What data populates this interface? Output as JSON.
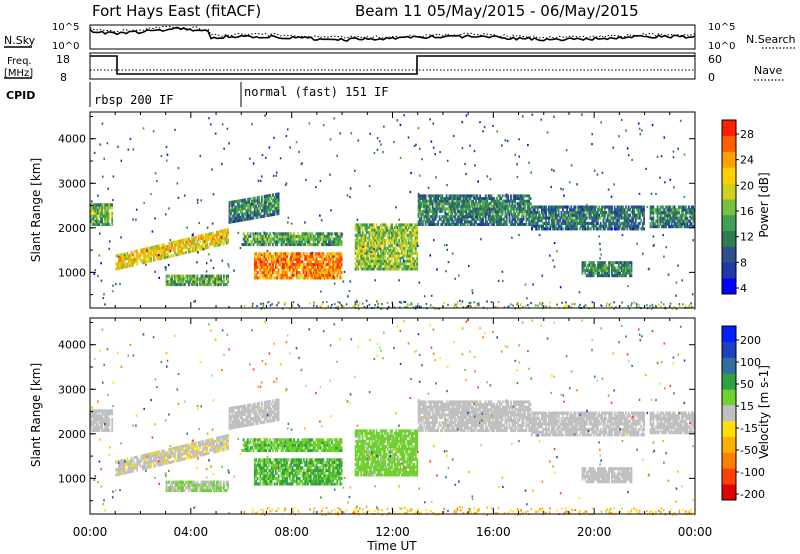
{
  "header": {
    "station": "Fort Hays East (fitACF)",
    "beam_range": "Beam 11 05/May/2015 - 06/May/2015"
  },
  "strips": {
    "nsky": {
      "label": "N.Sky",
      "ticks": [
        "10^5",
        "10^0"
      ],
      "right_label": "N.Search",
      "right_ticks": [
        "10^5",
        "10^0"
      ]
    },
    "freq": {
      "label_line1": "Freq.",
      "label_line2": "[MHz]",
      "ticks": [
        "18",
        "8"
      ],
      "right_label": "Nave",
      "right_ticks": [
        "60",
        "0"
      ]
    },
    "cpid": {
      "label": "CPID",
      "modes": [
        "rbsp 200 IF",
        "normal (fast) 151 IF"
      ]
    }
  },
  "chart_data": [
    {
      "type": "heatmap",
      "panel": "power",
      "xlabel": "Time UT",
      "x_ticks": [
        "00:00",
        "04:00",
        "08:00",
        "12:00",
        "16:00",
        "20:00",
        "00:00"
      ],
      "xlim": [
        0,
        24
      ],
      "ylabel": "Slant Range [km]",
      "ylim": [
        200,
        4600
      ],
      "y_ticks": [
        1000,
        2000,
        3000,
        4000
      ],
      "colorbar": {
        "label": "Power [dB]",
        "ticks": [
          "28",
          "24",
          "20",
          "16",
          "12",
          "8",
          "4"
        ],
        "range": [
          0,
          30
        ],
        "colors": [
          "#0000ff",
          "#1e3aa8",
          "#2f4f8f",
          "#2e7d4f",
          "#3ea050",
          "#7ac040",
          "#cfd020",
          "#ffd000",
          "#ffa000",
          "#ff6000",
          "#ff2000"
        ]
      }
    },
    {
      "type": "heatmap",
      "panel": "velocity",
      "xlabel": "Time UT",
      "x_ticks": [
        "00:00",
        "04:00",
        "08:00",
        "12:00",
        "16:00",
        "20:00",
        "00:00"
      ],
      "xlim": [
        0,
        24
      ],
      "ylabel": "Slant Range [km]",
      "ylim": [
        200,
        4600
      ],
      "y_ticks": [
        1000,
        2000,
        3000,
        4000
      ],
      "colorbar": {
        "label": "Velocity [m s-1]",
        "ticks": [
          "200",
          "100",
          "50",
          "15",
          "-15",
          "-50",
          "-100",
          "-200"
        ],
        "range": [
          -250,
          250
        ],
        "colors": [
          "#e00000",
          "#ff4000",
          "#ff8000",
          "#ffb000",
          "#ffe000",
          "#c0c0c0",
          "#70d030",
          "#30a040",
          "#3070a0",
          "#2040c0",
          "#0020ff"
        ]
      }
    }
  ],
  "echo_regions": [
    {
      "t0": 0.0,
      "t1": 0.9,
      "r0": 2050,
      "r1": 2550,
      "p": 15,
      "v": 0
    },
    {
      "t0": 1.0,
      "t1": 5.5,
      "r0": 1050,
      "r1": 1400,
      "p": 21,
      "v": -10,
      "rise": 600
    },
    {
      "t0": 3.0,
      "t1": 5.5,
      "r0": 700,
      "r1": 950,
      "p": 14,
      "v": 20
    },
    {
      "t0": 5.5,
      "t1": 7.5,
      "r0": 2100,
      "r1": 2600,
      "p": 11,
      "v": 0,
      "rise": 200
    },
    {
      "t0": 6.0,
      "t1": 10.0,
      "r0": 1600,
      "r1": 1900,
      "p": 14,
      "v": 60
    },
    {
      "t0": 6.5,
      "t1": 10.0,
      "r0": 850,
      "r1": 1450,
      "p": 26,
      "v": 70
    },
    {
      "t0": 10.5,
      "t1": 13.0,
      "r0": 1050,
      "r1": 2100,
      "p": 17,
      "v": 40
    },
    {
      "t0": 13.0,
      "t1": 17.5,
      "r0": 2050,
      "r1": 2750,
      "p": 11,
      "v": 0
    },
    {
      "t0": 17.5,
      "t1": 22.0,
      "r0": 1950,
      "r1": 2500,
      "p": 10,
      "v": 0
    },
    {
      "t0": 19.5,
      "t1": 21.5,
      "r0": 900,
      "r1": 1250,
      "p": 12,
      "v": 0
    },
    {
      "t0": 22.2,
      "t1": 24.0,
      "r0": 2000,
      "r1": 2500,
      "p": 11,
      "v": 0
    }
  ]
}
